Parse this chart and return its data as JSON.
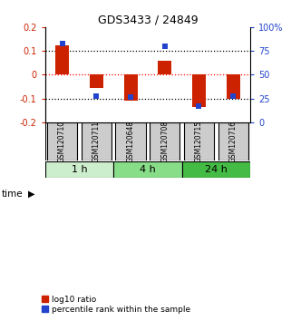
{
  "title": "GDS3433 / 24849",
  "samples": [
    "GSM120710",
    "GSM120711",
    "GSM120648",
    "GSM120708",
    "GSM120715",
    "GSM120716"
  ],
  "log10_ratio": [
    0.122,
    -0.055,
    -0.108,
    0.057,
    -0.135,
    -0.102
  ],
  "percentile_rank": [
    83,
    27,
    26,
    80,
    17,
    27
  ],
  "time_groups": [
    {
      "label": "1 h",
      "color": "#cceecc",
      "start": 0,
      "end": 2
    },
    {
      "label": "4 h",
      "color": "#88dd88",
      "start": 2,
      "end": 4
    },
    {
      "label": "24 h",
      "color": "#44bb44",
      "start": 4,
      "end": 6
    }
  ],
  "bar_color_red": "#cc2200",
  "bar_color_blue": "#2244cc",
  "ylim_left": [
    -0.2,
    0.2
  ],
  "ylim_right": [
    0,
    100
  ],
  "yticks_left": [
    -0.2,
    -0.1,
    0.0,
    0.1,
    0.2
  ],
  "yticks_right": [
    0,
    25,
    50,
    75,
    100
  ],
  "ytick_labels_right": [
    "0",
    "25",
    "50",
    "75",
    "100%"
  ],
  "sample_box_color": "#cccccc",
  "background_color": "#ffffff",
  "legend_red_label": "log10 ratio",
  "legend_blue_label": "percentile rank within the sample",
  "bar_width": 0.4,
  "marker_size": 4.5
}
